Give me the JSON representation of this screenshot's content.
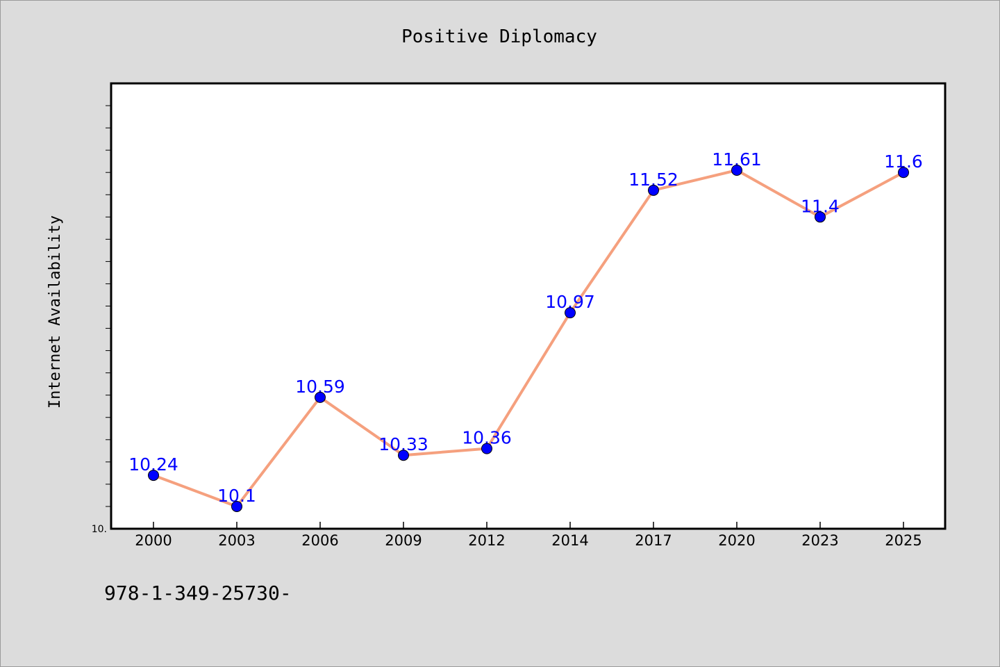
{
  "chart_data": {
    "type": "line",
    "title": "Positive Diplomacy",
    "xlabel": "",
    "ylabel": "Internet Availability",
    "categories": [
      "2000",
      "2003",
      "2006",
      "2009",
      "2012",
      "2014",
      "2017",
      "2020",
      "2023",
      "2025"
    ],
    "series": [
      {
        "values": [
          10.24,
          10.1,
          10.59,
          10.33,
          10.36,
          10.97,
          11.52,
          11.61,
          11.4,
          11.6
        ]
      }
    ],
    "data_labels": [
      "10.24",
      "10.1",
      "10.59",
      "10.33",
      "10.36",
      "10.97",
      "11.52",
      "11.61",
      "11.4",
      "11.6"
    ],
    "ylim": [
      10.0,
      12.0
    ],
    "y_min_label": "10.",
    "grid": false,
    "legend": "none",
    "line_color": "#f5a07e",
    "marker_color": "#0000ff",
    "label_color": "#0000ff"
  },
  "footer": {
    "text": "978-1-349-25730-"
  }
}
